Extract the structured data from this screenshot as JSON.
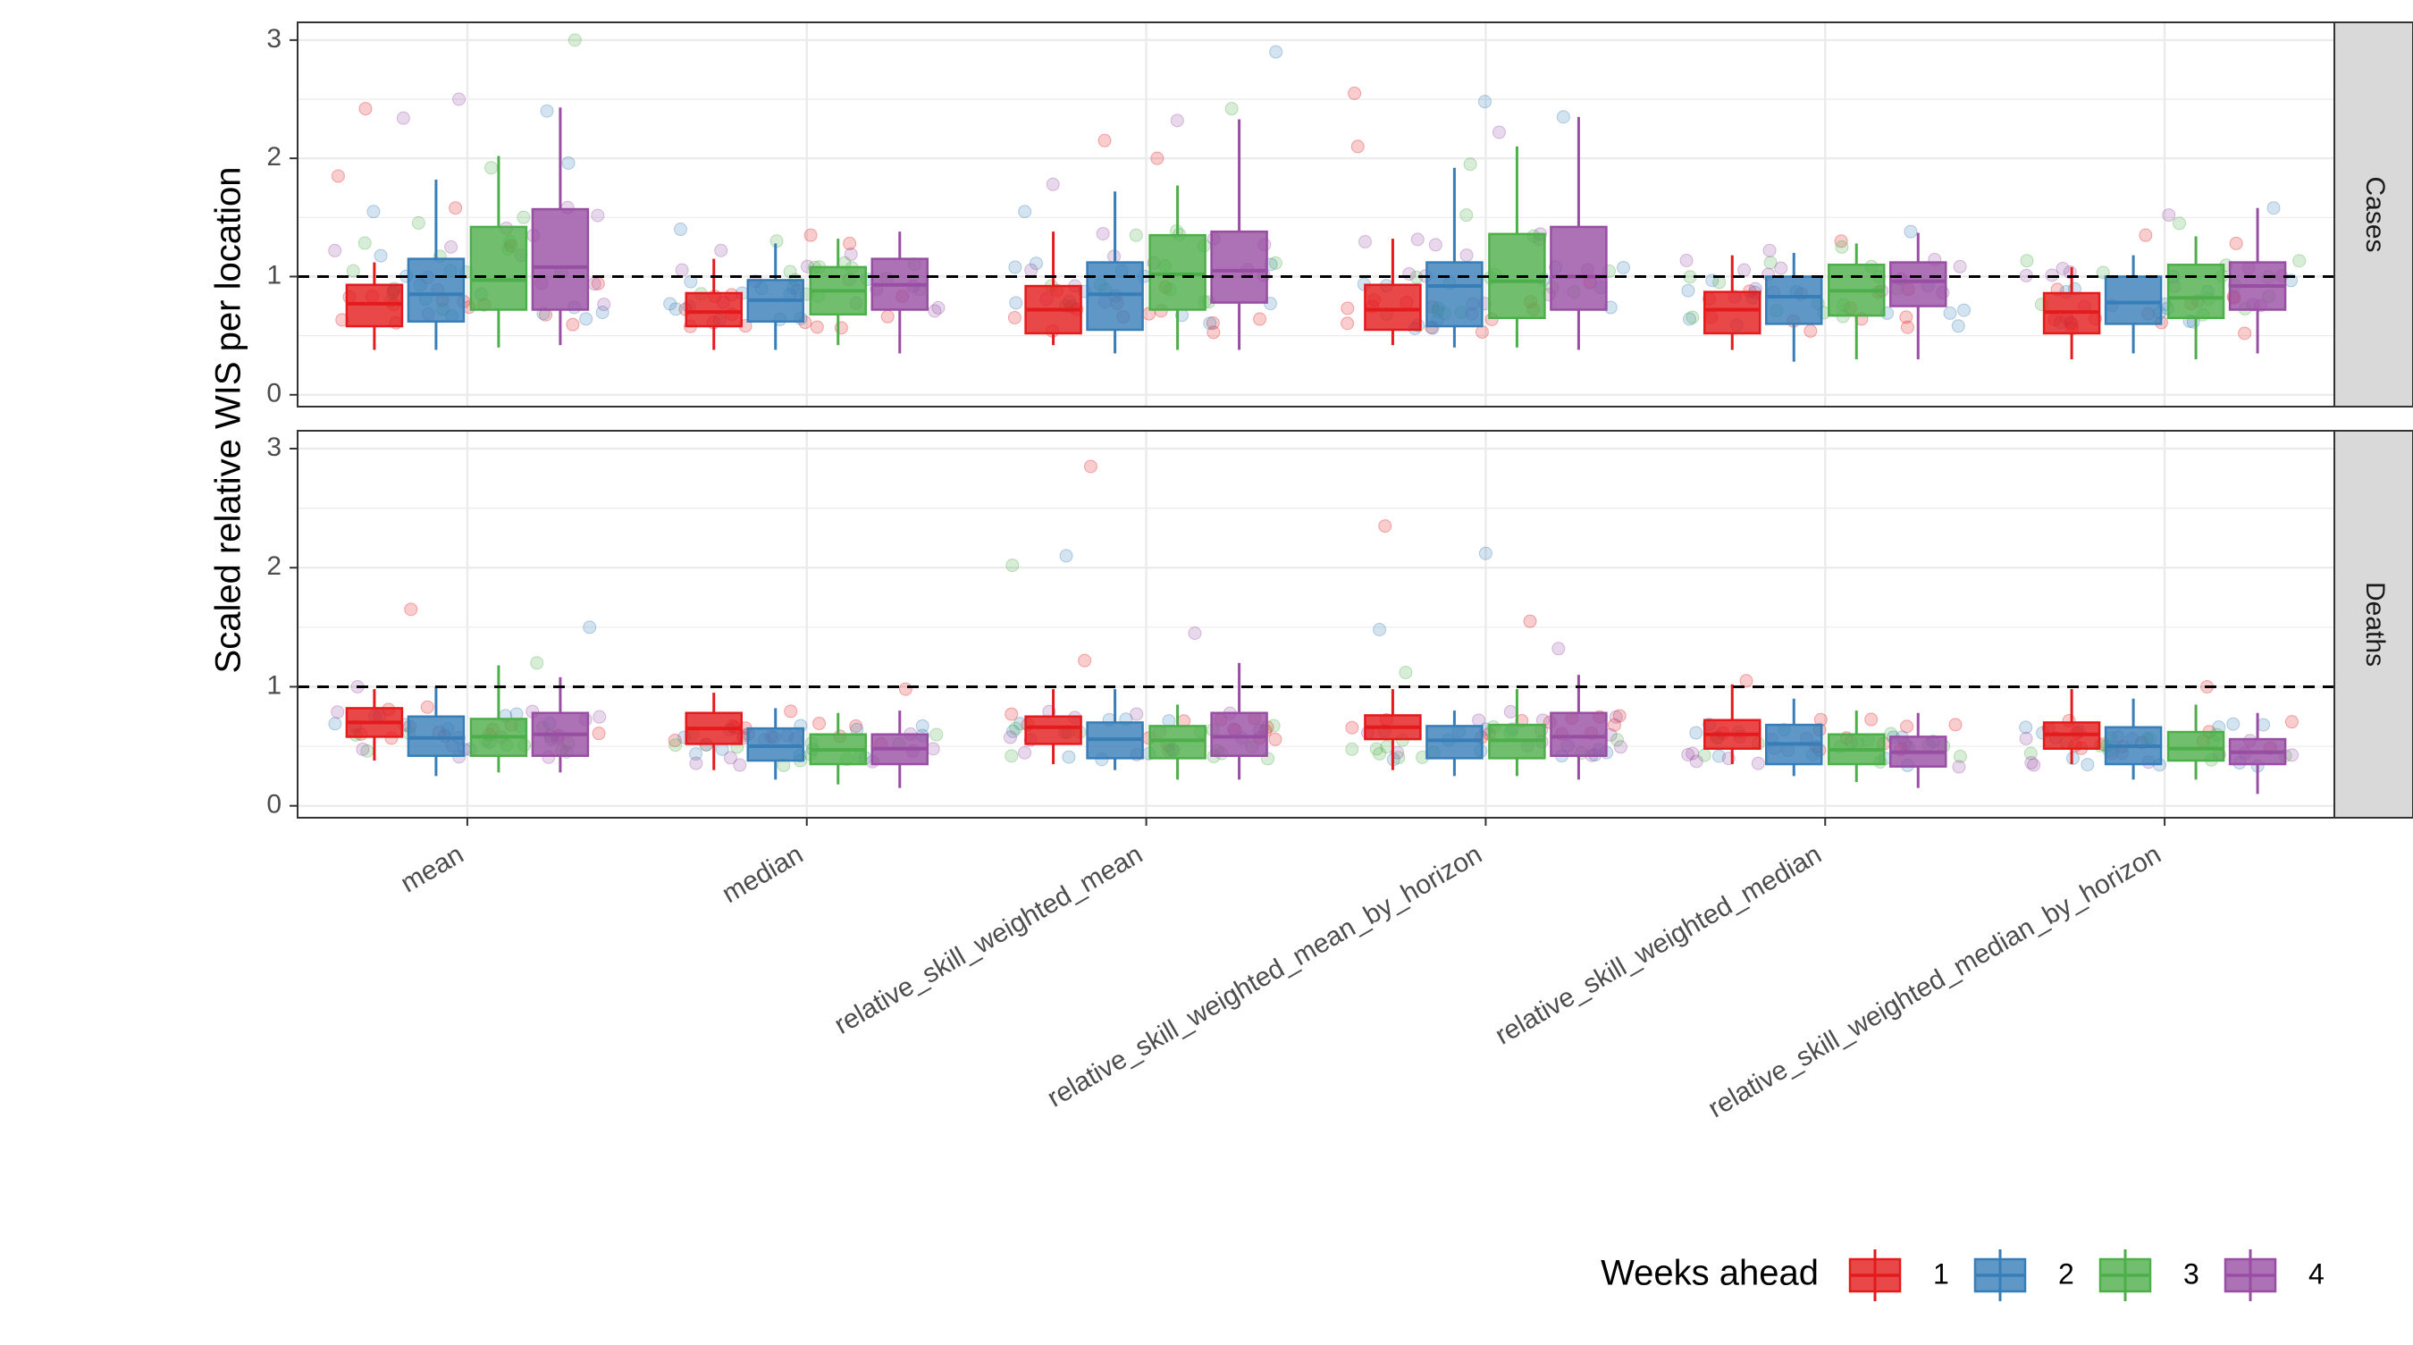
{
  "chart_data": {
    "type": "boxplot",
    "ylabel": "Scaled relative WIS per location",
    "xlabel": "",
    "ylim": [
      -0.1,
      3.15
    ],
    "yticks": [
      0,
      1,
      2,
      3
    ],
    "reference_line": 1,
    "grid": true,
    "legend": {
      "title": "Weeks ahead",
      "position": "bottom-right",
      "entries": [
        "1",
        "2",
        "3",
        "4"
      ]
    },
    "colors": {
      "1": "#e41a1c",
      "2": "#377eb8",
      "3": "#4daf4a",
      "4": "#984ea3",
      "strip": "#d9d9d9",
      "grid": "#ebebeb",
      "panel_border": "#333333"
    },
    "categories": [
      "mean",
      "median",
      "relative_skill_weighted_mean",
      "relative_skill_weighted_mean_by_horizon",
      "relative_skill_weighted_median",
      "relative_skill_weighted_median_by_horizon"
    ],
    "panels": [
      {
        "strip": "Cases",
        "boxes": [
          [
            [
              0.38,
              0.58,
              0.77,
              0.93,
              1.12
            ],
            [
              0.38,
              0.62,
              0.85,
              1.15,
              1.82
            ],
            [
              0.4,
              0.72,
              0.97,
              1.42,
              2.02
            ],
            [
              0.42,
              0.72,
              1.08,
              1.57,
              2.43
            ]
          ],
          [
            [
              0.38,
              0.58,
              0.7,
              0.86,
              1.15
            ],
            [
              0.38,
              0.62,
              0.8,
              0.97,
              1.28
            ],
            [
              0.42,
              0.68,
              0.88,
              1.08,
              1.32
            ],
            [
              0.35,
              0.72,
              0.93,
              1.15,
              1.38
            ]
          ],
          [
            [
              0.42,
              0.52,
              0.72,
              0.92,
              1.38
            ],
            [
              0.35,
              0.55,
              0.85,
              1.12,
              1.72
            ],
            [
              0.38,
              0.72,
              1.02,
              1.35,
              1.77
            ],
            [
              0.38,
              0.78,
              1.05,
              1.38,
              2.33
            ]
          ],
          [
            [
              0.42,
              0.55,
              0.72,
              0.93,
              1.32
            ],
            [
              0.4,
              0.58,
              0.92,
              1.12,
              1.92
            ],
            [
              0.4,
              0.65,
              0.96,
              1.36,
              2.1
            ],
            [
              0.38,
              0.72,
              1.0,
              1.42,
              2.35
            ]
          ],
          [
            [
              0.38,
              0.52,
              0.72,
              0.87,
              1.18
            ],
            [
              0.28,
              0.6,
              0.83,
              1.0,
              1.2
            ],
            [
              0.3,
              0.67,
              0.88,
              1.1,
              1.28
            ],
            [
              0.3,
              0.75,
              0.96,
              1.12,
              1.37
            ]
          ],
          [
            [
              0.3,
              0.52,
              0.7,
              0.86,
              1.08
            ],
            [
              0.35,
              0.6,
              0.78,
              1.0,
              1.18
            ],
            [
              0.3,
              0.65,
              0.82,
              1.1,
              1.34
            ],
            [
              0.35,
              0.72,
              0.92,
              1.12,
              1.58
            ]
          ]
        ],
        "outliers": [
          [
            [
              0.52,
              1.58
            ],
            [
              0.52,
              1.96
            ],
            [
              0.52,
              1.92
            ],
            [
              0.52,
              2.5
            ],
            [
              0.52,
              2.42
            ],
            [
              0.52,
              2.4
            ],
            [
              0.52,
              3.0
            ],
            [
              0.52,
              2.34
            ],
            [
              0.52,
              1.85
            ],
            [
              0.52,
              1.55
            ],
            [
              0.52,
              1.5
            ],
            [
              0.52,
              1.18
            ],
            [
              0.52,
              1.26
            ]
          ],
          [
            [
              0.52,
              1.35
            ],
            [
              0.52,
              1.4
            ],
            [
              0.52,
              1.3
            ],
            [
              0.52,
              1.22
            ],
            [
              0.52,
              1.28
            ]
          ],
          [
            [
              0.52,
              2.15
            ],
            [
              0.52,
              2.9
            ],
            [
              0.52,
              2.42
            ],
            [
              0.52,
              2.32
            ],
            [
              0.52,
              2.0
            ],
            [
              0.52,
              1.55
            ],
            [
              0.52,
              1.35
            ],
            [
              0.52,
              1.78
            ]
          ],
          [
            [
              0.52,
              2.1
            ],
            [
              0.52,
              2.48
            ],
            [
              0.52,
              1.95
            ],
            [
              0.52,
              2.22
            ],
            [
              0.52,
              2.55
            ],
            [
              0.52,
              2.35
            ],
            [
              0.52,
              1.52
            ],
            [
              0.52,
              1.36
            ]
          ],
          [
            [
              0.52,
              1.3
            ],
            [
              0.52,
              1.38
            ],
            [
              0.52,
              1.25
            ],
            [
              0.52,
              1.22
            ]
          ],
          [
            [
              0.52,
              1.35
            ],
            [
              0.52,
              1.58
            ],
            [
              0.52,
              1.45
            ],
            [
              0.52,
              1.52
            ],
            [
              0.52,
              1.28
            ]
          ]
        ]
      },
      {
        "strip": "Deaths",
        "boxes": [
          [
            [
              0.38,
              0.58,
              0.7,
              0.82,
              0.98
            ],
            [
              0.25,
              0.42,
              0.57,
              0.75,
              1.0
            ],
            [
              0.28,
              0.42,
              0.58,
              0.73,
              1.18
            ],
            [
              0.28,
              0.42,
              0.6,
              0.78,
              1.08
            ]
          ],
          [
            [
              0.3,
              0.52,
              0.65,
              0.78,
              0.95
            ],
            [
              0.22,
              0.38,
              0.5,
              0.65,
              0.82
            ],
            [
              0.18,
              0.35,
              0.47,
              0.6,
              0.78
            ],
            [
              0.15,
              0.35,
              0.48,
              0.6,
              0.8
            ]
          ],
          [
            [
              0.35,
              0.52,
              0.66,
              0.75,
              0.98
            ],
            [
              0.3,
              0.4,
              0.56,
              0.7,
              0.98
            ],
            [
              0.22,
              0.4,
              0.55,
              0.67,
              0.85
            ],
            [
              0.22,
              0.42,
              0.58,
              0.78,
              1.2
            ]
          ],
          [
            [
              0.3,
              0.56,
              0.66,
              0.76,
              0.98
            ],
            [
              0.25,
              0.4,
              0.55,
              0.67,
              0.8
            ],
            [
              0.25,
              0.4,
              0.55,
              0.68,
              0.98
            ],
            [
              0.22,
              0.42,
              0.58,
              0.78,
              1.1
            ]
          ],
          [
            [
              0.35,
              0.48,
              0.6,
              0.72,
              1.02
            ],
            [
              0.25,
              0.35,
              0.52,
              0.68,
              0.9
            ],
            [
              0.2,
              0.35,
              0.47,
              0.6,
              0.8
            ],
            [
              0.15,
              0.33,
              0.45,
              0.58,
              0.78
            ]
          ],
          [
            [
              0.35,
              0.48,
              0.6,
              0.7,
              0.98
            ],
            [
              0.22,
              0.35,
              0.5,
              0.66,
              0.9
            ],
            [
              0.22,
              0.38,
              0.48,
              0.62,
              0.85
            ],
            [
              0.1,
              0.35,
              0.45,
              0.56,
              0.78
            ]
          ]
        ],
        "outliers": [
          [
            [
              0.52,
              1.65
            ],
            [
              0.52,
              1.5
            ],
            [
              0.52,
              1.2
            ],
            [
              0.52,
              1.0
            ]
          ],
          [
            [
              0.52,
              0.98
            ]
          ],
          [
            [
              0.52,
              2.85
            ],
            [
              0.52,
              2.1
            ],
            [
              0.52,
              2.02
            ],
            [
              0.52,
              1.45
            ],
            [
              0.52,
              1.22
            ]
          ],
          [
            [
              0.52,
              2.35
            ],
            [
              0.52,
              1.48
            ],
            [
              0.52,
              1.12
            ],
            [
              0.52,
              1.32
            ],
            [
              0.52,
              1.55
            ],
            [
              0.52,
              2.12
            ]
          ],
          [
            [
              0.52,
              1.05
            ]
          ],
          [
            [
              0.52,
              1.0
            ]
          ]
        ]
      }
    ]
  }
}
